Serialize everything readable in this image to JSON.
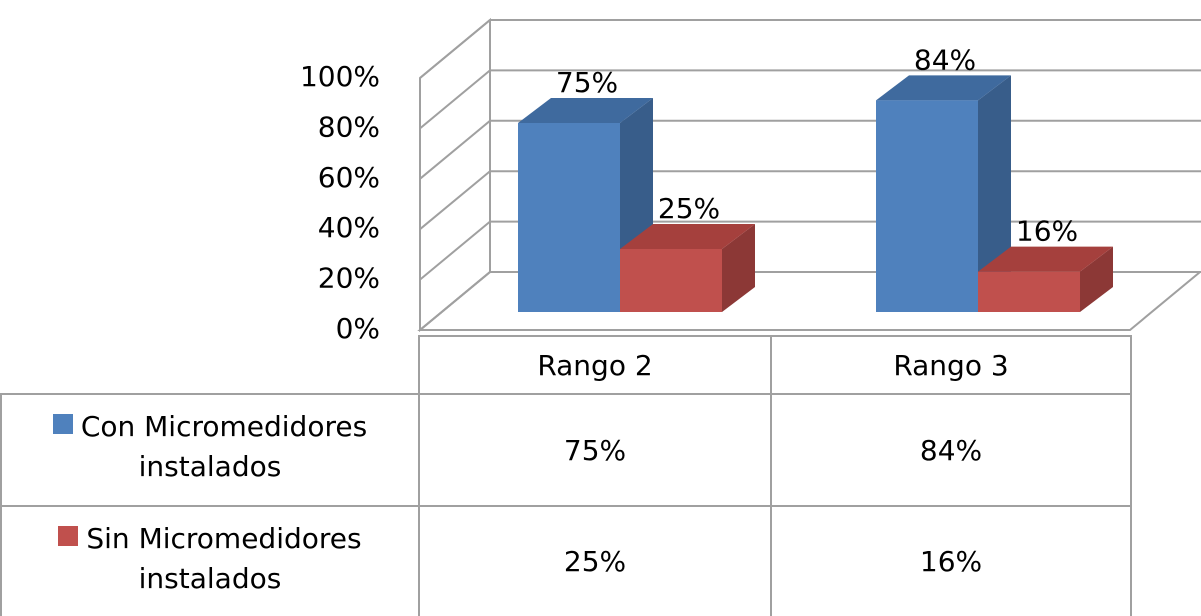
{
  "chart_data": {
    "type": "bar",
    "categories": [
      "Rango 2",
      "Rango 3"
    ],
    "series": [
      {
        "name": "Con Micromedidores instalados",
        "color": "#4f81bd",
        "side": "#385d8a",
        "top": "#3f6a9e",
        "values": [
          75,
          84
        ],
        "value_labels": [
          "75%",
          "84%"
        ]
      },
      {
        "name": "Sin Micromedidores instalados",
        "color": "#c0504d",
        "side": "#8c3836",
        "top": "#a5403d",
        "values": [
          25,
          16
        ],
        "value_labels": [
          "25%",
          "16%"
        ]
      }
    ],
    "ylim": [
      0,
      100
    ],
    "yticks": [
      {
        "value": 0,
        "label": "0%"
      },
      {
        "value": 20,
        "label": "20%"
      },
      {
        "value": 40,
        "label": "40%"
      },
      {
        "value": 60,
        "label": "60%"
      },
      {
        "value": 80,
        "label": "80%"
      },
      {
        "value": 100,
        "label": "100%"
      }
    ],
    "grid": true
  }
}
